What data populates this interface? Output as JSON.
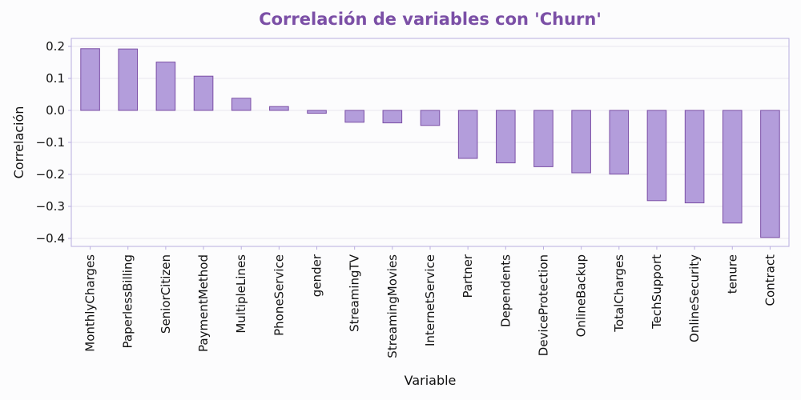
{
  "chart_data": {
    "type": "bar",
    "title": "Correlación de variables con 'Churn'",
    "xlabel": "Variable",
    "ylabel": "Correlación",
    "ylim": [
      -0.425,
      0.225
    ],
    "yticks": [
      0.2,
      0.1,
      0.0,
      -0.1,
      -0.2,
      -0.3,
      -0.4
    ],
    "ytick_labels": [
      "0.2",
      "0.1",
      "0.0",
      "−0.1",
      "−0.2",
      "−0.3",
      "−0.4"
    ],
    "grid": "horizontal",
    "categories": [
      "MonthlyCharges",
      "PaperlessBilling",
      "SeniorCitizen",
      "PaymentMethod",
      "MultipleLines",
      "PhoneService",
      "gender",
      "StreamingTV",
      "StreamingMovies",
      "InternetService",
      "Partner",
      "Dependents",
      "DeviceProtection",
      "OnlineBackup",
      "TotalCharges",
      "TechSupport",
      "OnlineSecurity",
      "tenure",
      "Contract"
    ],
    "values": [
      0.193,
      0.192,
      0.151,
      0.107,
      0.038,
      0.012,
      -0.009,
      -0.037,
      -0.039,
      -0.047,
      -0.15,
      -0.164,
      -0.176,
      -0.195,
      -0.199,
      -0.282,
      -0.289,
      -0.352,
      -0.397
    ],
    "colors": {
      "bar_fill": "#b39ddb",
      "bar_edge": "#7b4fa6",
      "title": "#7b4fa6",
      "frame": "#b9aee0",
      "grid": "#e8e6ee"
    }
  }
}
